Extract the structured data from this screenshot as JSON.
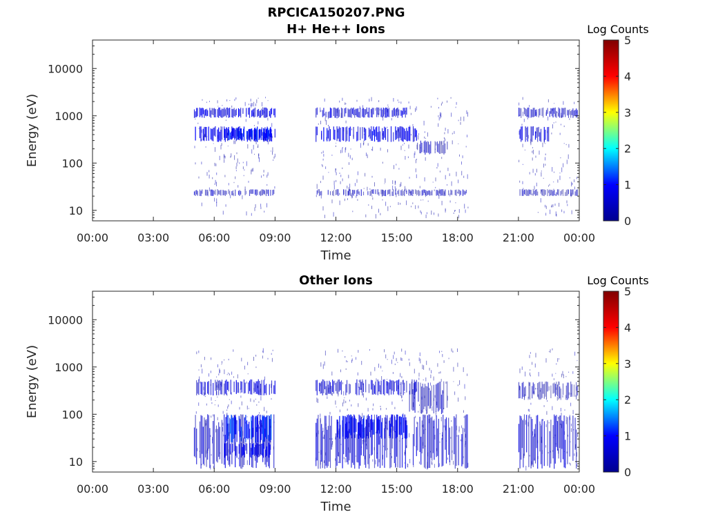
{
  "figure": {
    "title": "RPCICA150207.PNG"
  },
  "colormap": [
    "#00008f",
    "#0000ff",
    "#00ffff",
    "#ffff00",
    "#ff0000",
    "#800000"
  ],
  "chart_data": [
    {
      "type": "heatmap",
      "title": "H+ He++ Ions",
      "xlabel": "Time",
      "ylabel": "Energy (eV)",
      "y_scale": "log",
      "ylim": [
        6,
        40000
      ],
      "x_ticks": [
        "00:00",
        "03:00",
        "06:00",
        "09:00",
        "12:00",
        "15:00",
        "18:00",
        "21:00",
        "00:00"
      ],
      "y_ticks": [
        "10",
        "100",
        "1000",
        "10000"
      ],
      "colorbar": {
        "label": "Log Counts",
        "range": [
          0,
          5
        ],
        "ticks": [
          "0",
          "1",
          "2",
          "3",
          "4",
          "5"
        ]
      },
      "activity_intervals_hours": [
        [
          5.0,
          9.0
        ],
        [
          11.0,
          18.5
        ],
        [
          21.0,
          23.9
        ]
      ],
      "bands": [
        {
          "t": [
            5.0,
            9.0
          ],
          "e": [
            900,
            1500
          ],
          "v": 0.7
        },
        {
          "t": [
            5.0,
            9.0
          ],
          "e": [
            280,
            600
          ],
          "v": 0.8
        },
        {
          "t": [
            6.5,
            8.8
          ],
          "e": [
            300,
            550
          ],
          "v": 1.0
        },
        {
          "t": [
            5.0,
            9.0
          ],
          "e": [
            20,
            28
          ],
          "v": 0.4
        },
        {
          "t": [
            11.0,
            15.5
          ],
          "e": [
            900,
            1500
          ],
          "v": 0.6
        },
        {
          "t": [
            11.0,
            16.0
          ],
          "e": [
            280,
            600
          ],
          "v": 0.8
        },
        {
          "t": [
            16.0,
            17.5
          ],
          "e": [
            150,
            300
          ],
          "v": 0.3
        },
        {
          "t": [
            11.0,
            18.5
          ],
          "e": [
            20,
            28
          ],
          "v": 0.3
        },
        {
          "t": [
            21.0,
            23.9
          ],
          "e": [
            900,
            1500
          ],
          "v": 0.4
        },
        {
          "t": [
            21.0,
            22.5
          ],
          "e": [
            280,
            600
          ],
          "v": 0.6
        },
        {
          "t": [
            21.0,
            23.9
          ],
          "e": [
            20,
            28
          ],
          "v": 0.3
        }
      ]
    },
    {
      "type": "heatmap",
      "title": "Other Ions",
      "xlabel": "Time",
      "ylabel": "Energy (eV)",
      "y_scale": "log",
      "ylim": [
        6,
        40000
      ],
      "x_ticks": [
        "00:00",
        "03:00",
        "06:00",
        "09:00",
        "12:00",
        "15:00",
        "18:00",
        "21:00",
        "00:00"
      ],
      "y_ticks": [
        "10",
        "100",
        "1000",
        "10000"
      ],
      "colorbar": {
        "label": "Log Counts",
        "range": [
          0,
          5
        ],
        "ticks": [
          "0",
          "1",
          "2",
          "3",
          "4",
          "5"
        ]
      },
      "activity_intervals_hours": [
        [
          5.0,
          9.0
        ],
        [
          11.0,
          18.5
        ],
        [
          21.0,
          23.9
        ]
      ],
      "bands": [
        {
          "t": [
            5.0,
            9.0
          ],
          "e": [
            250,
            550
          ],
          "v": 0.6
        },
        {
          "t": [
            5.0,
            9.0
          ],
          "e": [
            7,
            100
          ],
          "v": 0.5
        },
        {
          "t": [
            6.5,
            8.8
          ],
          "e": [
            25,
            100
          ],
          "v": 1.1
        },
        {
          "t": [
            6.5,
            8.8
          ],
          "e": [
            12,
            25
          ],
          "v": 0.8
        },
        {
          "t": [
            11.0,
            16.0
          ],
          "e": [
            250,
            550
          ],
          "v": 0.6
        },
        {
          "t": [
            11.0,
            18.5
          ],
          "e": [
            7,
            100
          ],
          "v": 0.5
        },
        {
          "t": [
            12.0,
            15.5
          ],
          "e": [
            30,
            100
          ],
          "v": 0.9
        },
        {
          "t": [
            15.5,
            17.5
          ],
          "e": [
            100,
            500
          ],
          "v": 0.3
        },
        {
          "t": [
            21.0,
            23.9
          ],
          "e": [
            200,
            500
          ],
          "v": 0.3
        },
        {
          "t": [
            21.0,
            23.9
          ],
          "e": [
            7,
            100
          ],
          "v": 0.5
        }
      ]
    }
  ]
}
